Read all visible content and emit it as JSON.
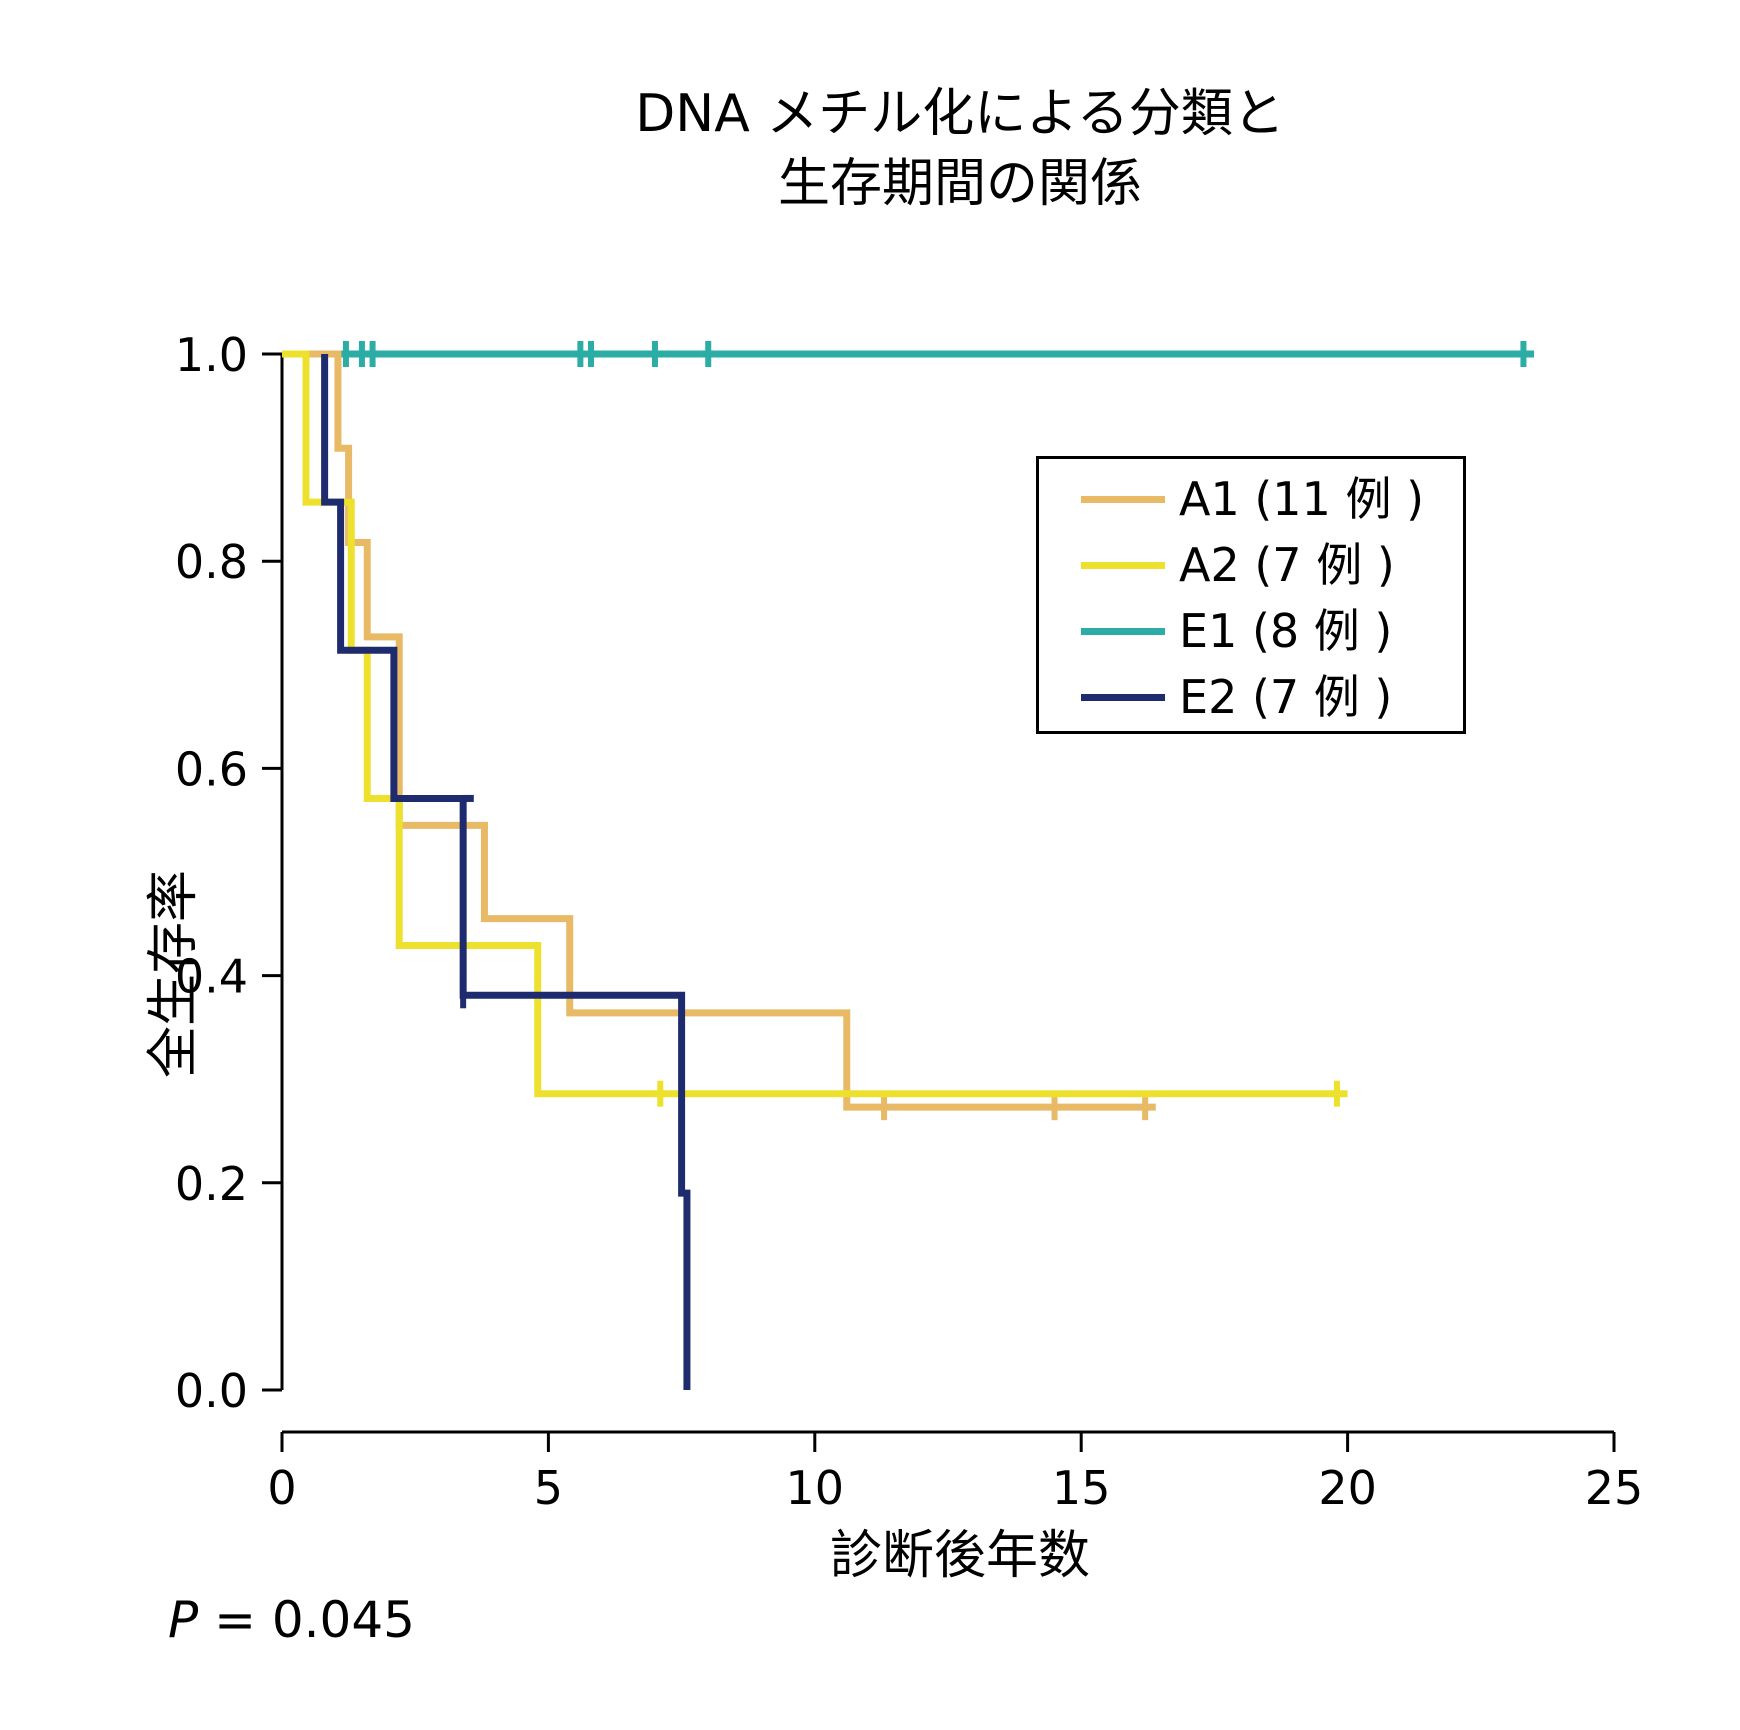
{
  "chart_data": {
    "type": "line",
    "subtype": "kaplan-meier step curve",
    "title_lines": [
      "DNA メチル化による分類と",
      "生存期間の関係"
    ],
    "xlabel": "診断後年数",
    "ylabel": "全生存率",
    "xlim": [
      0,
      25
    ],
    "ylim": [
      0,
      1
    ],
    "x_ticks": [
      0,
      5,
      10,
      15,
      20,
      25
    ],
    "y_ticks": [
      0.0,
      0.2,
      0.4,
      0.6,
      0.8,
      1.0
    ],
    "x_tick_labels": [
      "0",
      "5",
      "10",
      "15",
      "20",
      "25"
    ],
    "y_tick_labels": [
      "0.0",
      "0.2",
      "0.4",
      "0.6",
      "0.8",
      "1.0"
    ],
    "grid": false,
    "legend_position": "upper-right",
    "annotation": {
      "label": "P",
      "text": "= 0.045"
    },
    "series": [
      {
        "name": "A1 (11 例 )",
        "color": "#E8BA66",
        "steps": [
          [
            0,
            1.0
          ],
          [
            1.05,
            0.909
          ],
          [
            1.25,
            0.818
          ],
          [
            1.6,
            0.727
          ],
          [
            2.2,
            0.545
          ],
          [
            3.8,
            0.455
          ],
          [
            5.4,
            0.364
          ],
          [
            10.6,
            0.273
          ],
          [
            16.4,
            0.273
          ]
        ],
        "censored": [
          11.3,
          14.5,
          16.2
        ]
      },
      {
        "name": "A2 (7 例 )",
        "color": "#EDE12E",
        "steps": [
          [
            0,
            1.0
          ],
          [
            0.45,
            0.857
          ],
          [
            1.3,
            0.714
          ],
          [
            1.6,
            0.571
          ],
          [
            2.2,
            0.429
          ],
          [
            4.8,
            0.286
          ],
          [
            20.0,
            0.286
          ]
        ],
        "censored": [
          7.1,
          19.8
        ]
      },
      {
        "name": "E1 (8 例 )",
        "color": "#2BADA6",
        "steps": [
          [
            0,
            1.0
          ],
          [
            23.5,
            1.0
          ]
        ],
        "censored": [
          1.2,
          1.5,
          1.7,
          5.6,
          5.8,
          7.0,
          8.0,
          23.3
        ]
      },
      {
        "name": "E2 (7 例 )",
        "color": "#1E2B6E",
        "steps": [
          [
            0.8,
            1.0
          ],
          [
            0.8,
            0.857
          ],
          [
            1.1,
            0.714
          ],
          [
            2.1,
            0.571
          ],
          [
            3.4,
            0.381
          ],
          [
            7.5,
            0.19
          ],
          [
            7.6,
            0.0
          ]
        ],
        "extra_segment": [
          [
            3.4,
            0.571
          ],
          [
            3.6,
            0.571
          ]
        ],
        "censored": [
          3.4
        ]
      }
    ]
  }
}
